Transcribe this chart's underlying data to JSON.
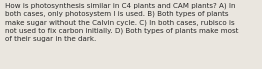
{
  "text": "How is photosynthesis similar in C4 plants and CAM plants? A) In\nboth cases, only photosystem I is used. B) Both types of plants\nmake sugar without the Calvin cycle. C) In both cases, rubisco is\nnot used to fix carbon initially. D) Both types of plants make most\nof their sugar in the dark.",
  "bg_color": "#eae6df",
  "text_color": "#2a2a2a",
  "font_size": 5.1,
  "fig_width": 2.62,
  "fig_height": 0.69,
  "linespacing": 1.4
}
